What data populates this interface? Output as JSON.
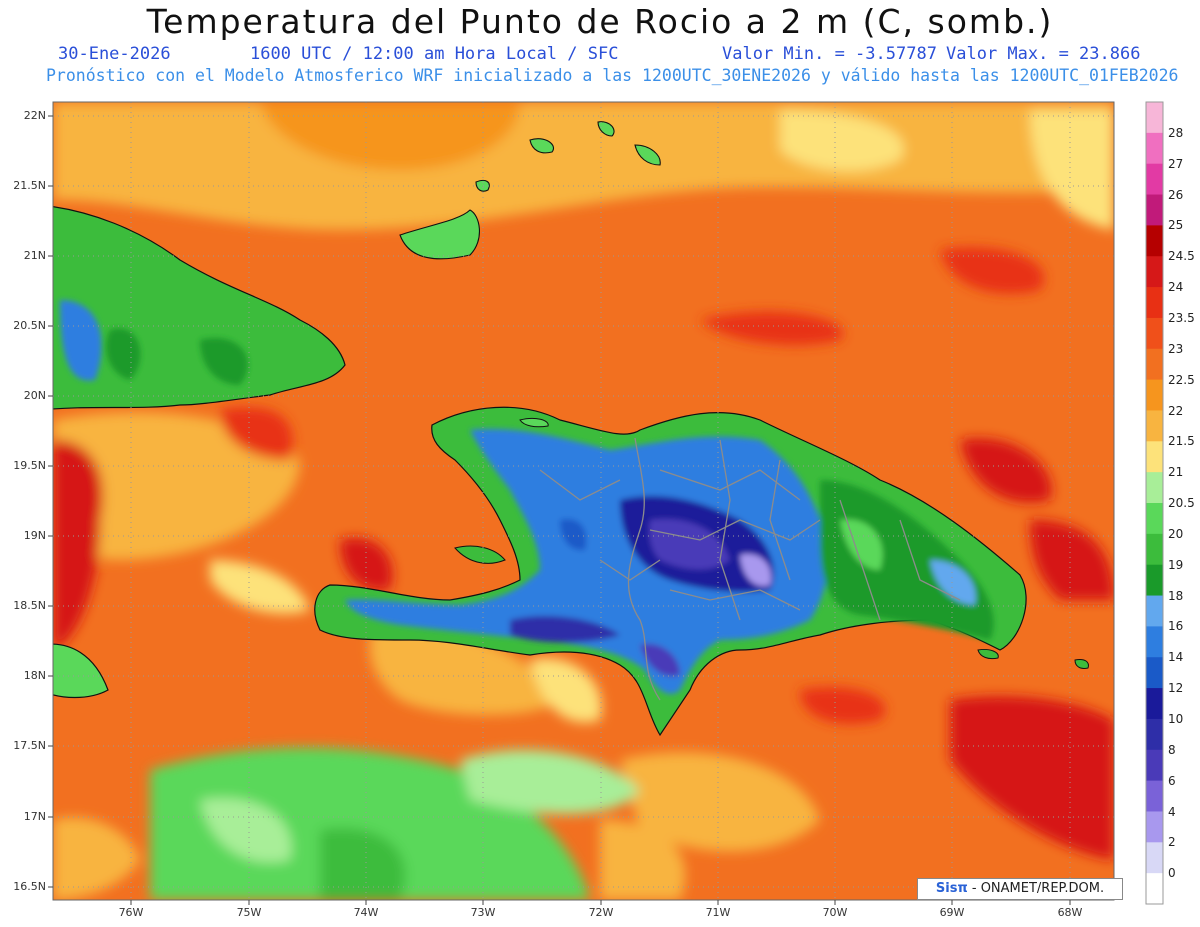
{
  "header": {
    "title": "Temperatura del Punto de Rocio a 2 m (C, somb.)",
    "date": "30-Ene-2026",
    "time_info": "1600 UTC / 12:00 am Hora Local / SFC",
    "min_value": "Valor Min. = -3.57787",
    "max_value": "Valor Max. = 23.866",
    "model_info": "Pronóstico con el Modelo Atmosferico WRF inicializado a las 1200UTC_30ENE2026 y válido hasta las  1200UTC_01FEB2026"
  },
  "map": {
    "lat_labels": [
      "22N",
      "21.5N",
      "21N",
      "20.5N",
      "20N",
      "19.5N",
      "19N",
      "18.5N",
      "18N",
      "17.5N",
      "17N",
      "16.5N"
    ],
    "lon_labels": [
      "76W",
      "75W",
      "74W",
      "73W",
      "72W",
      "71W",
      "70W",
      "69W",
      "68W"
    ],
    "credit_brand": "Sisπ",
    "credit_org": "- ONAMET/REP.DOM."
  },
  "colorbar": {
    "labels": [
      "28",
      "27",
      "26",
      "25",
      "24.5",
      "24",
      "23.5",
      "23",
      "22.5",
      "22",
      "21.5",
      "21",
      "20.5",
      "20",
      "19",
      "18",
      "16",
      "14",
      "12",
      "10",
      "8",
      "6",
      "4",
      "2",
      "0"
    ],
    "colors": [
      "#f7b6d8",
      "#f06fc0",
      "#e23aa4",
      "#c11a7a",
      "#b50000",
      "#d61818",
      "#e83014",
      "#f0501a",
      "#f27020",
      "#f6951e",
      "#f8b440",
      "#fde27a",
      "#a8ee98",
      "#5ad85a",
      "#3cbc3c",
      "#1a9a2a",
      "#62a8ee",
      "#2e7ee0",
      "#1a5ac8",
      "#1a1a9a",
      "#2e2ea8",
      "#4a3ab8",
      "#7a62d8",
      "#a898ee",
      "#d8d8f6",
      "#ffffff"
    ]
  }
}
